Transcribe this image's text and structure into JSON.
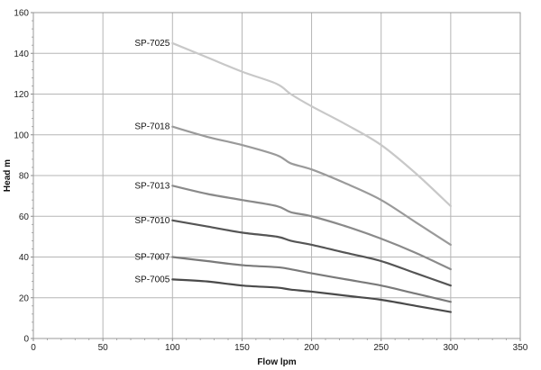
{
  "chart_data": {
    "type": "line",
    "xlabel": "Flow  lpm",
    "ylabel": "Head  m",
    "xlim": [
      0,
      350
    ],
    "ylim": [
      0,
      160
    ],
    "x_ticks": [
      0,
      50,
      100,
      150,
      200,
      250,
      300,
      350
    ],
    "y_ticks": [
      0,
      20,
      40,
      60,
      80,
      100,
      120,
      140,
      160
    ],
    "grid": true,
    "legend": "inline labels at left end of each curve",
    "series": [
      {
        "name": "SP-7025",
        "color": "#c8c8c8",
        "x": [
          100,
          125,
          150,
          175,
          185,
          200,
          225,
          250,
          275,
          300
        ],
        "y": [
          145,
          138,
          131,
          125,
          120,
          114,
          105,
          95,
          81,
          65
        ]
      },
      {
        "name": "SP-7018",
        "color": "#9a9a9a",
        "x": [
          100,
          125,
          150,
          175,
          185,
          200,
          225,
          250,
          275,
          300
        ],
        "y": [
          104,
          99,
          95,
          90,
          86,
          83,
          76,
          68,
          57,
          46
        ]
      },
      {
        "name": "SP-7013",
        "color": "#8a8a8a",
        "x": [
          100,
          125,
          150,
          175,
          185,
          200,
          225,
          250,
          275,
          300
        ],
        "y": [
          75,
          71,
          68,
          65,
          62,
          60,
          55,
          49,
          42,
          34
        ]
      },
      {
        "name": "SP-7010",
        "color": "#555555",
        "x": [
          100,
          125,
          150,
          175,
          185,
          200,
          225,
          250,
          275,
          300
        ],
        "y": [
          58,
          55,
          52,
          50,
          48,
          46,
          42,
          38,
          32,
          26
        ]
      },
      {
        "name": "SP-7007",
        "color": "#7a7a7a",
        "x": [
          100,
          125,
          150,
          175,
          185,
          200,
          225,
          250,
          275,
          300
        ],
        "y": [
          40,
          38,
          36,
          35,
          34,
          32,
          29,
          26,
          22,
          18
        ]
      },
      {
        "name": "SP-7005",
        "color": "#4a4a4a",
        "x": [
          100,
          125,
          150,
          175,
          185,
          200,
          225,
          250,
          275,
          300
        ],
        "y": [
          29,
          28,
          26,
          25,
          24,
          23,
          21,
          19,
          16,
          13
        ]
      }
    ]
  }
}
